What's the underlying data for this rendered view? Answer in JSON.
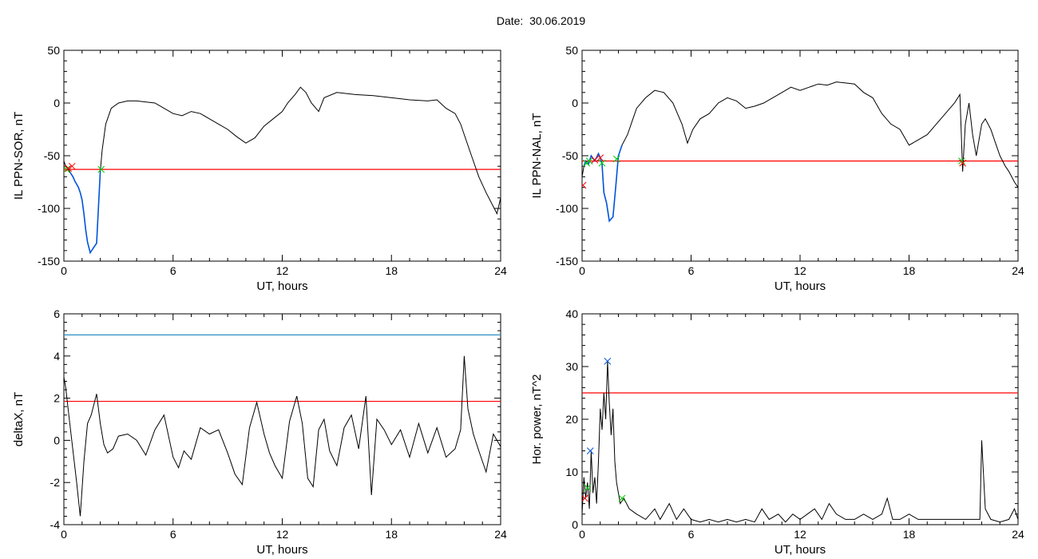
{
  "figure": {
    "title_prefix": "Date:",
    "title_date": "30.06.2019"
  },
  "colors": {
    "trace": "#000000",
    "threshold": "#ff0000",
    "highlight": "#0055dd",
    "limit_line": "#2a8fbf",
    "marker_red": "#ff0000",
    "marker_green": "#00cc00",
    "marker_blue": "#0055dd"
  },
  "chart_data": [
    {
      "id": "il-sor",
      "type": "line",
      "ylabel": "IL PPN-SOR, nT",
      "xlabel": "UT, hours",
      "xlim": [
        0,
        24
      ],
      "ylim": [
        -150,
        50
      ],
      "xticks": [
        0,
        6,
        12,
        18,
        24
      ],
      "yticks": [
        -150,
        -100,
        -50,
        0,
        50
      ],
      "ytick_labels": [
        "-150",
        "-100",
        "-50",
        "0",
        "50"
      ],
      "x": [
        0,
        0.1,
        0.25,
        0.35,
        0.5,
        0.6,
        0.8,
        0.9,
        1.0,
        1.1,
        1.2,
        1.3,
        1.45,
        1.6,
        1.8,
        2.0,
        2.1,
        2.3,
        2.6,
        3.0,
        3.5,
        4.0,
        5.0,
        5.5,
        6.0,
        6.5,
        7.0,
        7.5,
        8.0,
        8.5,
        9.0,
        9.5,
        10.0,
        10.5,
        11.0,
        11.5,
        12.0,
        12.3,
        12.7,
        13.0,
        13.3,
        13.6,
        14.0,
        14.3,
        15.0,
        16.0,
        17.0,
        18.0,
        19.0,
        20.0,
        20.5,
        21.0,
        21.5,
        21.8,
        22.0,
        22.4,
        22.8,
        23.2,
        23.5,
        23.8,
        24.0
      ],
      "y": [
        -55,
        -60,
        -63,
        -66,
        -70,
        -74,
        -80,
        -85,
        -92,
        -105,
        -120,
        -132,
        -142,
        -138,
        -133,
        -65,
        -45,
        -20,
        -5,
        0,
        2,
        2,
        0,
        -5,
        -10,
        -12,
        -8,
        -10,
        -15,
        -20,
        -25,
        -32,
        -38,
        -33,
        -22,
        -15,
        -8,
        0,
        8,
        15,
        10,
        0,
        -8,
        5,
        10,
        8,
        7,
        5,
        3,
        2,
        3,
        -5,
        -10,
        -20,
        -30,
        -50,
        -70,
        -85,
        -95,
        -105,
        -90
      ],
      "highlight_segments": [
        [
          0.3,
          2.05
        ]
      ],
      "threshold": -63,
      "markers": [
        {
          "x": 0.15,
          "y": -63,
          "color": "green"
        },
        {
          "x": 0.25,
          "y": -62,
          "color": "red"
        },
        {
          "x": 0.45,
          "y": -60,
          "color": "red"
        },
        {
          "x": 2.05,
          "y": -63,
          "color": "green"
        }
      ]
    },
    {
      "id": "il-nal",
      "type": "line",
      "ylabel": "IL PPN-NAL, nT",
      "xlabel": "UT, hours",
      "xlim": [
        0,
        24
      ],
      "ylim": [
        -150,
        50
      ],
      "xticks": [
        0,
        6,
        12,
        18,
        24
      ],
      "yticks": [
        -150,
        -100,
        -50,
        0,
        50
      ],
      "ytick_labels": [
        "-150",
        "-100",
        "-50",
        "0",
        "50"
      ],
      "x": [
        0,
        0.1,
        0.2,
        0.35,
        0.5,
        0.7,
        0.9,
        1.0,
        1.1,
        1.2,
        1.35,
        1.5,
        1.7,
        1.85,
        2.0,
        2.2,
        2.5,
        2.8,
        3.0,
        3.5,
        4.0,
        4.5,
        5.0,
        5.5,
        5.8,
        6.1,
        6.5,
        7.0,
        7.5,
        8.0,
        8.5,
        9.0,
        9.5,
        10.0,
        10.5,
        11.0,
        11.5,
        12.0,
        12.5,
        13.0,
        13.5,
        14.0,
        14.5,
        15.0,
        15.5,
        16.0,
        16.5,
        17.0,
        17.5,
        18.0,
        18.5,
        19.0,
        19.5,
        20.0,
        20.5,
        20.8,
        20.95,
        21.1,
        21.3,
        21.5,
        21.7,
        22.0,
        22.2,
        22.5,
        22.8,
        23.0,
        23.3,
        23.5,
        23.8,
        24.0
      ],
      "y": [
        -70,
        -60,
        -55,
        -58,
        -50,
        -55,
        -48,
        -52,
        -58,
        -85,
        -95,
        -112,
        -108,
        -80,
        -50,
        -40,
        -30,
        -15,
        -5,
        5,
        12,
        10,
        0,
        -20,
        -38,
        -25,
        -15,
        -10,
        0,
        5,
        2,
        -5,
        -3,
        0,
        5,
        10,
        15,
        12,
        15,
        18,
        17,
        20,
        19,
        18,
        10,
        5,
        -10,
        -20,
        -25,
        -40,
        -35,
        -30,
        -20,
        -10,
        0,
        8,
        -65,
        -20,
        0,
        -30,
        -50,
        -20,
        -15,
        -25,
        -40,
        -50,
        -60,
        -65,
        -75,
        -80
      ],
      "highlight_segments": [
        [
          0.05,
          2.2
        ]
      ],
      "threshold": -55,
      "markers": [
        {
          "x": 0.05,
          "y": -78,
          "color": "red"
        },
        {
          "x": 0.25,
          "y": -57,
          "color": "green"
        },
        {
          "x": 0.4,
          "y": -55,
          "color": "green"
        },
        {
          "x": 0.7,
          "y": -54,
          "color": "red"
        },
        {
          "x": 1.0,
          "y": -52,
          "color": "red"
        },
        {
          "x": 1.1,
          "y": -57,
          "color": "green"
        },
        {
          "x": 1.9,
          "y": -53,
          "color": "green"
        },
        {
          "x": 20.9,
          "y": -55,
          "color": "green"
        },
        {
          "x": 20.95,
          "y": -57,
          "color": "red"
        }
      ]
    },
    {
      "id": "deltax",
      "type": "line",
      "ylabel": "deltaX, nT",
      "xlabel": "UT, hours",
      "xlim": [
        0,
        24
      ],
      "ylim": [
        -4,
        6
      ],
      "xticks": [
        0,
        6,
        12,
        18,
        24
      ],
      "yticks": [
        -4,
        -2,
        0,
        2,
        4,
        6
      ],
      "ytick_labels": [
        "-4",
        "-2",
        "0",
        "2",
        "4",
        "6"
      ],
      "x": [
        0,
        0.1,
        0.3,
        0.5,
        0.7,
        0.9,
        1.1,
        1.3,
        1.5,
        1.8,
        2.0,
        2.2,
        2.4,
        2.7,
        3.0,
        3.5,
        4.0,
        4.5,
        5.0,
        5.5,
        6.0,
        6.3,
        6.6,
        7.0,
        7.5,
        8.0,
        8.5,
        9.0,
        9.4,
        9.8,
        10.2,
        10.6,
        11.0,
        11.3,
        11.6,
        12.0,
        12.4,
        12.8,
        13.1,
        13.4,
        13.7,
        14.0,
        14.3,
        14.6,
        15.0,
        15.4,
        15.8,
        16.2,
        16.6,
        16.9,
        17.2,
        17.6,
        18.0,
        18.5,
        19.0,
        19.5,
        20.0,
        20.5,
        21.0,
        21.5,
        21.8,
        22.0,
        22.2,
        22.5,
        22.8,
        23.2,
        23.6,
        24.0
      ],
      "y": [
        3.0,
        2.5,
        1.0,
        -0.5,
        -2.0,
        -3.6,
        -1.0,
        0.8,
        1.2,
        2.2,
        0.8,
        -0.2,
        -0.6,
        -0.4,
        0.2,
        0.3,
        0.0,
        -0.7,
        0.5,
        1.2,
        -0.8,
        -1.3,
        -0.5,
        -0.9,
        0.6,
        0.3,
        0.5,
        -0.6,
        -1.6,
        -2.1,
        0.6,
        1.8,
        0.3,
        -0.6,
        -1.2,
        -1.8,
        0.9,
        2.1,
        0.8,
        -1.8,
        -2.2,
        0.5,
        1.0,
        -0.5,
        -1.2,
        0.6,
        1.2,
        -0.4,
        2.1,
        -2.6,
        1.0,
        0.5,
        -0.2,
        0.5,
        -0.8,
        0.8,
        -0.6,
        0.6,
        -0.8,
        -0.4,
        0.5,
        4.0,
        1.5,
        0.3,
        -0.5,
        -1.5,
        0.3,
        -0.3
      ],
      "threshold": 1.85,
      "limit": 5
    },
    {
      "id": "hor-power",
      "type": "line",
      "ylabel": "Hor. power, nT^2",
      "xlabel": "UT, hours",
      "xlim": [
        0,
        24
      ],
      "ylim": [
        0,
        40
      ],
      "xticks": [
        0,
        6,
        12,
        18,
        24
      ],
      "yticks": [
        0,
        10,
        20,
        30,
        40
      ],
      "ytick_labels": [
        "0",
        "10",
        "20",
        "30",
        "40"
      ],
      "x": [
        0,
        0.1,
        0.2,
        0.3,
        0.4,
        0.5,
        0.6,
        0.7,
        0.8,
        0.9,
        1.0,
        1.1,
        1.2,
        1.3,
        1.4,
        1.5,
        1.6,
        1.7,
        1.8,
        1.9,
        2.0,
        2.1,
        2.3,
        2.6,
        3.0,
        3.5,
        4.0,
        4.3,
        4.8,
        5.2,
        5.6,
        6.0,
        6.5,
        7.0,
        7.5,
        8.0,
        8.5,
        9.0,
        9.5,
        9.9,
        10.3,
        10.8,
        11.2,
        11.6,
        12.0,
        12.4,
        12.8,
        13.2,
        13.6,
        14.0,
        14.5,
        15.0,
        15.5,
        16.0,
        16.5,
        16.8,
        17.1,
        17.5,
        18.0,
        18.5,
        19.0,
        19.5,
        20.0,
        20.5,
        21.0,
        21.5,
        21.9,
        22.0,
        22.2,
        22.5,
        23.0,
        23.5,
        23.8,
        24.0
      ],
      "y": [
        2,
        9,
        5,
        8,
        3,
        14,
        6,
        9,
        4,
        12,
        22,
        18,
        25,
        20,
        31,
        23,
        17,
        22,
        12,
        8,
        6,
        4,
        5,
        3,
        2,
        1,
        3,
        1,
        4,
        1,
        3,
        1,
        0.5,
        1,
        0.5,
        1,
        0.5,
        1,
        0.5,
        3,
        1,
        2,
        0.5,
        2,
        1,
        2,
        3,
        1,
        4,
        2,
        1,
        1,
        2,
        1,
        2,
        5,
        1,
        1,
        2,
        1,
        1,
        1,
        1,
        1,
        1,
        1,
        1,
        16,
        3,
        1,
        0.5,
        1,
        3,
        1
      ],
      "threshold": 25,
      "markers": [
        {
          "x": 0.15,
          "y": 5,
          "color": "red"
        },
        {
          "x": 0.3,
          "y": 7,
          "color": "green"
        },
        {
          "x": 0.45,
          "y": 14,
          "color": "blue"
        },
        {
          "x": 1.4,
          "y": 31,
          "color": "blue"
        },
        {
          "x": 2.2,
          "y": 5,
          "color": "green"
        }
      ]
    }
  ]
}
